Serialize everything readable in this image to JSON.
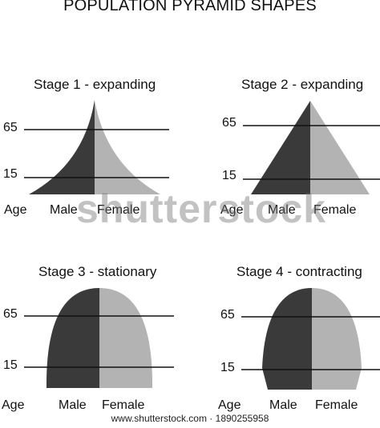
{
  "title": "POPULATION PYRAMID SHAPES",
  "colors": {
    "male": "#3a3a3a",
    "female": "#b3b3b3",
    "line": "#111111"
  },
  "age_label": "Age",
  "male_label": "Male",
  "female_label": "Female",
  "age_marks": [
    "65",
    "15"
  ],
  "stages": [
    {
      "title": "Stage 1 - expanding",
      "shape": "concave-triangle"
    },
    {
      "title": "Stage 2 - expanding",
      "shape": "triangle"
    },
    {
      "title": "Stage 3 - stationary",
      "shape": "dome"
    },
    {
      "title": "Stage 4 - contracting",
      "shape": "narrow-base-dome"
    }
  ],
  "watermark": "shutterstock",
  "footer": "www.shutterstock.com · 1890255958"
}
